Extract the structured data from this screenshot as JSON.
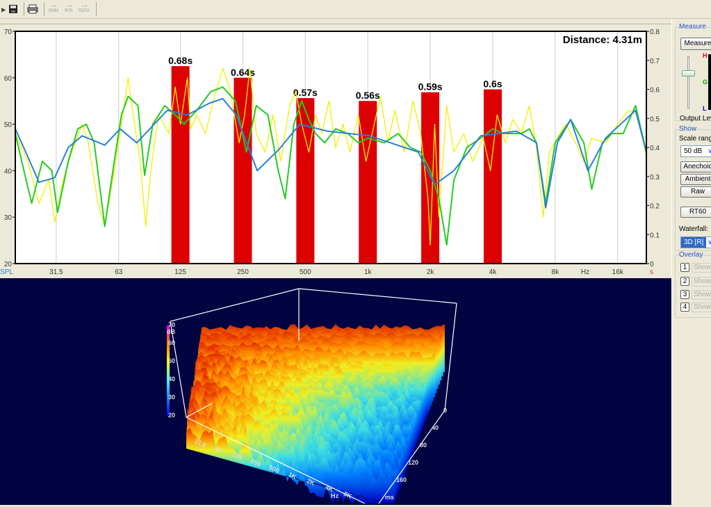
{
  "toolbar": {
    "items": [
      {
        "icon": "open-icon"
      },
      {
        "icon": "save-icon"
      },
      {
        "icon": "print-icon"
      }
    ],
    "small": [
      "ROM",
      "RTA",
      "RDTA"
    ]
  },
  "colors": {
    "rt60_bar": "#dd0000",
    "yellow": "#f0f000",
    "green": "#22cc22",
    "blue": "#2a7fd8",
    "waterfall_bg": "#010440"
  },
  "chart_data": [
    {
      "type": "line+bar",
      "annotation": "Distance: 4.31m",
      "x_scale": "log",
      "xlim": [
        20,
        22000
      ],
      "ylim_left": [
        20,
        70
      ],
      "ylim_right": [
        0,
        0.8
      ],
      "yticks_left": [
        "20",
        "30",
        "40",
        "50",
        "60",
        "70"
      ],
      "yticks_right": [
        "0",
        "0.1",
        "0.2",
        "0.3",
        "0.4",
        "0.5",
        "0.6",
        "0.7",
        "0.8"
      ],
      "ylabel_left": "SPL",
      "ylabel_right": "s",
      "xunit": "Hz",
      "xticks": [
        {
          "v": 31.5,
          "l": "31.5"
        },
        {
          "v": 63,
          "l": "63"
        },
        {
          "v": 125,
          "l": "125"
        },
        {
          "v": 250,
          "l": "250"
        },
        {
          "v": 500,
          "l": "500"
        },
        {
          "v": 1000,
          "l": "1k"
        },
        {
          "v": 2000,
          "l": "2k"
        },
        {
          "v": 4000,
          "l": "4k"
        },
        {
          "v": 8000,
          "l": "8k"
        },
        {
          "v": 16000,
          "l": "16k"
        }
      ],
      "grid": true,
      "bars": {
        "categories": [
          125,
          250,
          500,
          1000,
          2000,
          4000
        ],
        "values": [
          0.68,
          0.64,
          0.57,
          0.56,
          0.59,
          0.6
        ],
        "labels": [
          "0.68s",
          "0.64s",
          "0.57s",
          "0.56s",
          "0.59s",
          "0.6s"
        ]
      },
      "series": [
        {
          "color": "#f0f000",
          "points": [
            [
              20,
              48
            ],
            [
              23,
              42
            ],
            [
              26,
              33
            ],
            [
              29,
              38
            ],
            [
              31,
              29
            ],
            [
              34,
              38
            ],
            [
              38,
              45
            ],
            [
              42,
              50
            ],
            [
              45,
              46
            ],
            [
              50,
              33
            ],
            [
              54,
              28
            ],
            [
              60,
              40
            ],
            [
              66,
              52
            ],
            [
              70,
              60
            ],
            [
              74,
              52
            ],
            [
              80,
              42
            ],
            [
              85,
              28
            ],
            [
              90,
              40
            ],
            [
              98,
              52
            ],
            [
              110,
              48
            ],
            [
              118,
              58
            ],
            [
              125,
              50
            ],
            [
              135,
              60
            ],
            [
              140,
              49
            ],
            [
              150,
              52
            ],
            [
              165,
              48
            ],
            [
              180,
              55
            ],
            [
              200,
              62
            ],
            [
              215,
              58
            ],
            [
              240,
              46
            ],
            [
              255,
              52
            ],
            [
              270,
              62
            ],
            [
              290,
              48
            ],
            [
              320,
              44
            ],
            [
              350,
              52
            ],
            [
              380,
              42
            ],
            [
              420,
              54
            ],
            [
              450,
              57
            ],
            [
              480,
              50
            ],
            [
              520,
              44
            ],
            [
              560,
              52
            ],
            [
              600,
              48
            ],
            [
              650,
              55
            ],
            [
              700,
              45
            ],
            [
              760,
              50
            ],
            [
              820,
              44
            ],
            [
              900,
              52
            ],
            [
              980,
              42
            ],
            [
              1050,
              48
            ],
            [
              1150,
              56
            ],
            [
              1250,
              46
            ],
            [
              1350,
              53
            ],
            [
              1500,
              44
            ],
            [
              1650,
              55
            ],
            [
              1800,
              48
            ],
            [
              1950,
              34
            ],
            [
              2000,
              24
            ],
            [
              2100,
              50
            ],
            [
              2200,
              30
            ],
            [
              2400,
              54
            ],
            [
              2600,
              44
            ],
            [
              2900,
              48
            ],
            [
              3200,
              42
            ],
            [
              3600,
              47
            ],
            [
              3900,
              40
            ],
            [
              4200,
              52
            ],
            [
              4600,
              46
            ],
            [
              5000,
              51
            ],
            [
              5500,
              48
            ],
            [
              6000,
              54
            ],
            [
              6500,
              45
            ],
            [
              7000,
              30
            ],
            [
              7500,
              44
            ],
            [
              8200,
              47
            ],
            [
              9000,
              50
            ],
            [
              10000,
              46
            ],
            [
              11000,
              42
            ],
            [
              12000,
              47
            ],
            [
              14000,
              46
            ],
            [
              16000,
              50
            ],
            [
              18000,
              53
            ],
            [
              20000,
              52
            ],
            [
              22000,
              43
            ]
          ]
        },
        {
          "color": "#22cc22",
          "points": [
            [
              20,
              48
            ],
            [
              22,
              40
            ],
            [
              24,
              33
            ],
            [
              27,
              42
            ],
            [
              30,
              40
            ],
            [
              32,
              31
            ],
            [
              36,
              42
            ],
            [
              40,
              49
            ],
            [
              44,
              50
            ],
            [
              48,
              46
            ],
            [
              54,
              28
            ],
            [
              60,
              42
            ],
            [
              65,
              52
            ],
            [
              70,
              56
            ],
            [
              78,
              54
            ],
            [
              84,
              39
            ],
            [
              92,
              50
            ],
            [
              105,
              54
            ],
            [
              118,
              52
            ],
            [
              130,
              50
            ],
            [
              150,
              53
            ],
            [
              175,
              57
            ],
            [
              200,
              58
            ],
            [
              230,
              55
            ],
            [
              260,
              44
            ],
            [
              290,
              54
            ],
            [
              330,
              52
            ],
            [
              370,
              40
            ],
            [
              400,
              34
            ],
            [
              440,
              50
            ],
            [
              480,
              55
            ],
            [
              520,
              51
            ],
            [
              560,
              48
            ],
            [
              620,
              46
            ],
            [
              700,
              49
            ],
            [
              800,
              48
            ],
            [
              900,
              46
            ],
            [
              1000,
              47
            ],
            [
              1200,
              46
            ],
            [
              1400,
              48
            ],
            [
              1600,
              45
            ],
            [
              1800,
              44
            ],
            [
              2000,
              40
            ],
            [
              2200,
              34
            ],
            [
              2400,
              24
            ],
            [
              2600,
              38
            ],
            [
              3000,
              45
            ],
            [
              3500,
              47
            ],
            [
              4000,
              49
            ],
            [
              4500,
              48
            ],
            [
              5000,
              48
            ],
            [
              5500,
              48
            ],
            [
              6000,
              49
            ],
            [
              6500,
              46
            ],
            [
              7200,
              33
            ],
            [
              8000,
              46
            ],
            [
              9500,
              51
            ],
            [
              11000,
              46
            ],
            [
              12000,
              36
            ],
            [
              13500,
              46
            ],
            [
              15000,
              48
            ],
            [
              17000,
              48
            ],
            [
              19500,
              54
            ],
            [
              22000,
              44
            ]
          ]
        },
        {
          "color": "#2a7fd8",
          "points": [
            [
              20,
              49
            ],
            [
              23,
              43
            ],
            [
              26,
              37.5
            ],
            [
              31,
              38.5
            ],
            [
              36,
              45
            ],
            [
              42,
              47.5
            ],
            [
              54,
              45.5
            ],
            [
              64,
              49
            ],
            [
              77,
              46
            ],
            [
              108,
              53
            ],
            [
              135,
              52
            ],
            [
              172,
              54.5
            ],
            [
              200,
              55.5
            ],
            [
              232,
              52
            ],
            [
              293,
              40
            ],
            [
              372,
              44.5
            ],
            [
              470,
              50
            ],
            [
              640,
              48.5
            ],
            [
              1020,
              47.5
            ],
            [
              1750,
              44
            ],
            [
              2100,
              37
            ],
            [
              2600,
              40
            ],
            [
              3500,
              47.5
            ],
            [
              5200,
              48.5
            ],
            [
              6500,
              46
            ],
            [
              7200,
              32
            ],
            [
              8200,
              46
            ],
            [
              9500,
              51
            ],
            [
              11500,
              40
            ],
            [
              14000,
              47
            ],
            [
              19500,
              53
            ],
            [
              22000,
              44
            ]
          ]
        }
      ]
    },
    {
      "type": "waterfall-3d",
      "zlabel": "dB",
      "zticks": [
        "20",
        "30",
        "40",
        "50",
        "60",
        "70"
      ],
      "xticks": [
        "31.5",
        "63",
        "125",
        "250",
        "500",
        "1K",
        "2K",
        "4K",
        "8K"
      ],
      "xunit": "Hz",
      "yticks": [
        "0",
        "40",
        "80",
        "120",
        "160"
      ],
      "yunit": "ms"
    }
  ],
  "side": {
    "measure_group": "Measure",
    "measure_button": "Measure",
    "meter": {
      "h": "H",
      "g": "G",
      "l": "L"
    },
    "output_level": "Output Lev",
    "show_group": "Show",
    "scale_range_label": "Scale range",
    "scale_range": "50 dB",
    "buttons": [
      "Anechoic",
      "Ambient",
      "Raw"
    ],
    "rt60": "RT60",
    "waterfall_label": "Waterfall:",
    "waterfall_value": "3D [R]",
    "overlay_group": "Overlay",
    "overlays": [
      {
        "n": "1",
        "l": "Show"
      },
      {
        "n": "2",
        "l": "Show"
      },
      {
        "n": "3",
        "l": "Show"
      },
      {
        "n": "4",
        "l": "Show"
      }
    ]
  }
}
